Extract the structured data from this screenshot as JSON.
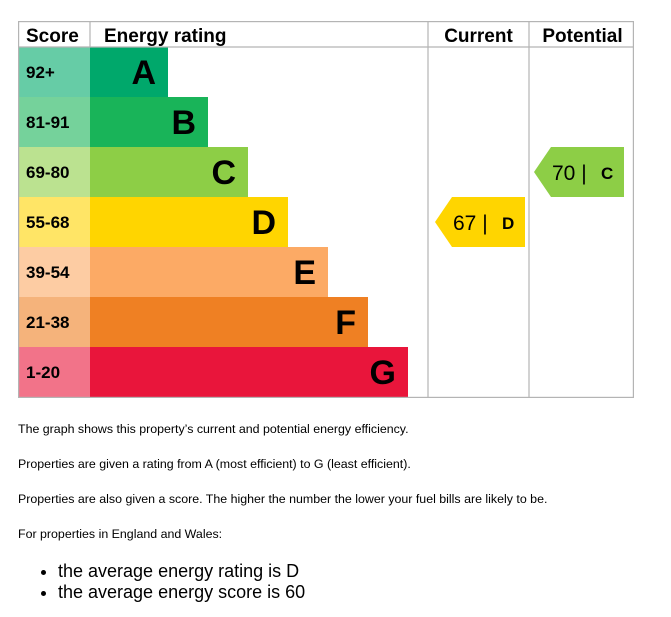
{
  "chart_data": {
    "type": "table",
    "columns": [
      "Score",
      "Energy rating",
      "Current",
      "Potential"
    ],
    "bands": [
      {
        "score": "92+",
        "letter": "A",
        "color": "#00A86B",
        "score_color": "#66CCA6"
      },
      {
        "score": "81-91",
        "letter": "B",
        "color": "#19B459",
        "score_color": "#75D29B"
      },
      {
        "score": "69-80",
        "letter": "C",
        "color": "#8DCE46",
        "score_color": "#BBE290"
      },
      {
        "score": "55-68",
        "letter": "D",
        "color": "#FFD500",
        "score_color": "#FFE566"
      },
      {
        "score": "39-54",
        "letter": "E",
        "color": "#FCAA65",
        "score_color": "#FDCCA3"
      },
      {
        "score": "21-38",
        "letter": "F",
        "color": "#EF8023",
        "score_color": "#F5B37B"
      },
      {
        "score": "1-20",
        "letter": "G",
        "color": "#E9153B",
        "score_color": "#F27389"
      }
    ],
    "current": {
      "score": 67,
      "letter": "D",
      "display": "67 |",
      "color": "#FFD500"
    },
    "potential": {
      "score": 70,
      "letter": "C",
      "display": "70 |",
      "color": "#8DCE46"
    }
  },
  "text": {
    "p1": "The graph shows this property’s current and potential energy efficiency.",
    "p2": "Properties are given a rating from A (most efficient) to G (least efficient).",
    "p3": "Properties are also given a score. The higher the number the lower your fuel bills are likely to be.",
    "p4": "For properties in England and Wales:",
    "bullets": [
      "the average energy rating is D",
      "the average energy score is 60"
    ]
  }
}
